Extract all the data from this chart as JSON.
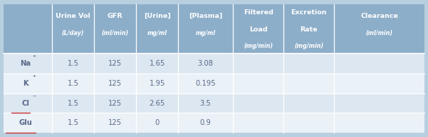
{
  "header_bg": "#8daec9",
  "row_bg_1": "#dce7f1",
  "row_bg_2": "#eaf1f7",
  "outer_bg": "#b8cfe0",
  "text_color_header": "#ffffff",
  "text_color_data": "#5a6a8a",
  "col_bounds": [
    0.0,
    0.115,
    0.215,
    0.315,
    0.415,
    0.545,
    0.665,
    0.785,
    1.0
  ],
  "col_headers": [
    [
      "",
      "",
      ""
    ],
    [
      "Urine Vol",
      "(L/day)",
      ""
    ],
    [
      "GFR",
      "(ml/min)",
      ""
    ],
    [
      "[Urine]",
      "mg/ml",
      ""
    ],
    [
      "[Plasma]",
      "mg/ml",
      ""
    ],
    [
      "Filtered",
      "Load",
      "(mg/min)"
    ],
    [
      "Excretion",
      "Rate",
      "(mg/min)"
    ],
    [
      "Clearance",
      "(ml/min)",
      ""
    ]
  ],
  "row_label_plain": [
    "Na",
    "K",
    "Cl",
    "Glu"
  ],
  "row_label_super": [
    "+",
    "+",
    "−",
    ""
  ],
  "row_underline": [
    false,
    false,
    true,
    true
  ],
  "row_data": [
    [
      "1.5",
      "125",
      "1.65",
      "3.08",
      "",
      "",
      ""
    ],
    [
      "1.5",
      "125",
      "1.95",
      "0.195",
      "",
      "",
      ""
    ],
    [
      "1.5",
      "125",
      "2.65",
      "3.5",
      "",
      "",
      ""
    ],
    [
      "1.5",
      "125",
      "0",
      "0.9",
      "",
      "",
      ""
    ]
  ],
  "n_rows": 4,
  "n_cols": 8,
  "header_bold_lines": [
    1,
    2
  ],
  "italic_lines": [
    2,
    3
  ]
}
